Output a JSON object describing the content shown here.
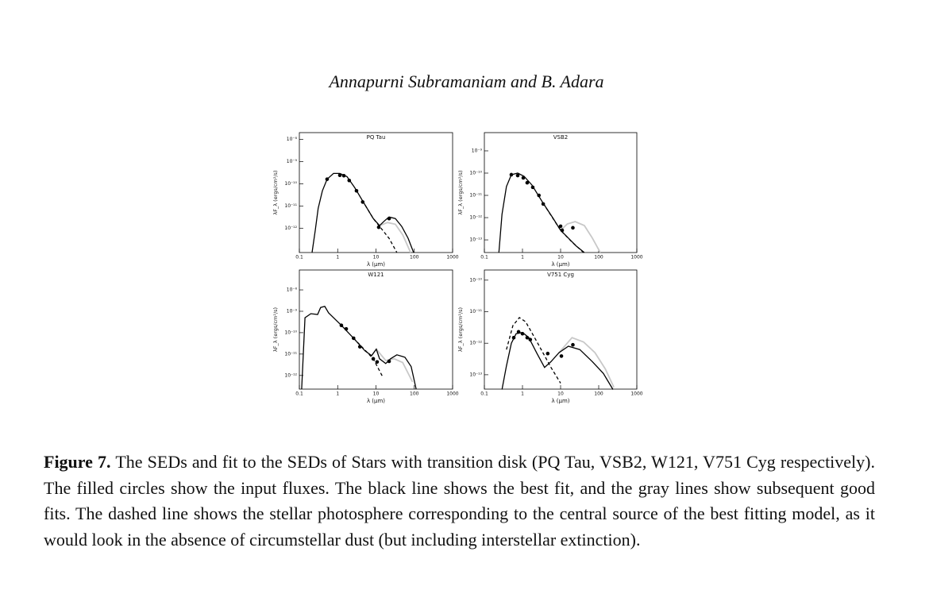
{
  "header": {
    "running_head": "Annapurni Subramaniam and B. Adara"
  },
  "chart_data": [
    {
      "type": "line",
      "title": "PQ Tau",
      "xlabel": "λ (μm)",
      "ylabel": "λF_λ (ergs/cm²/s)",
      "xscale": "log",
      "yscale": "log",
      "xlim": [
        0.1,
        1000
      ],
      "ylim": [
        8e-14,
        2e-08
      ],
      "xticks": [
        0.1,
        1,
        10,
        100,
        1000
      ],
      "yticks": [
        {
          "value": 1e-08,
          "label": "10⁻⁸"
        },
        {
          "value": 1e-09,
          "label": "10⁻⁹"
        },
        {
          "value": 1e-10,
          "label": "10⁻¹⁰"
        },
        {
          "value": 1e-11,
          "label": "10⁻¹¹"
        },
        {
          "value": 1e-12,
          "label": "10⁻¹²"
        }
      ],
      "series": [
        {
          "color": "#c8c8c8",
          "style": "solid",
          "x": [
            12.4,
            20,
            32,
            50,
            80
          ],
          "values": [
            1.3e-12,
            1.8e-12,
            1.5e-12,
            5e-13,
            8e-14
          ]
        },
        {
          "color": "#000000",
          "style": "dashed",
          "x": [
            5.2,
            8.5,
            22,
            35
          ],
          "values": [
            1.1e-11,
            2.7e-12,
            3.5e-13,
            8e-14
          ]
        },
        {
          "color": "#000000",
          "style": "solid",
          "x": [
            0.215,
            0.26,
            0.31,
            0.4,
            0.53,
            0.78,
            1.14,
            1.75,
            2.8,
            5.2,
            8.5,
            12.4,
            16.5,
            22,
            32,
            47,
            69,
            96
          ],
          "values": [
            8e-14,
            7.8e-13,
            7.8e-12,
            4.8e-11,
            1.6e-10,
            2.9e-10,
            2.9e-10,
            2.1e-10,
            6.6e-11,
            1.1e-11,
            2.7e-12,
            1.3e-12,
            2.1e-12,
            3.2e-12,
            2.7e-12,
            1.2e-12,
            3.5e-13,
            8e-14
          ]
        }
      ],
      "points": {
        "color": "#000000",
        "x": [
          0.53,
          1.14,
          1.45,
          2.0,
          3.1,
          4.5,
          11.8,
          22
        ],
        "values": [
          1.6e-10,
          2.4e-10,
          2.3e-10,
          1.4e-10,
          4.8e-11,
          1.5e-11,
          1.1e-12,
          2.7e-12
        ]
      }
    },
    {
      "type": "line",
      "title": "VSB2",
      "xlabel": "λ (μm)",
      "ylabel": "λF_λ (ergs/cm²/s)",
      "xscale": "log",
      "yscale": "log",
      "xlim": [
        0.1,
        1000
      ],
      "ylim": [
        2.7e-14,
        6.6e-09
      ],
      "xticks": [
        0.1,
        1,
        10,
        100,
        1000
      ],
      "yticks": [
        {
          "value": 1e-09,
          "label": "10⁻⁹"
        },
        {
          "value": 1e-10,
          "label": "10⁻¹⁰"
        },
        {
          "value": 1e-11,
          "label": "10⁻¹¹"
        },
        {
          "value": 1e-12,
          "label": "10⁻¹²"
        },
        {
          "value": 1e-13,
          "label": "10⁻¹³"
        }
      ],
      "series": [
        {
          "color": "#c8c8c8",
          "style": "solid",
          "x": [
            10,
            15,
            24,
            42,
            68,
            110
          ],
          "values": [
            2.7e-13,
            5.2e-13,
            6.6e-13,
            4.4e-13,
            1.2e-13,
            2.7e-14
          ]
        },
        {
          "color": "#000000",
          "style": "dashed",
          "x": [
            3.5,
            10,
            20,
            40
          ],
          "values": [
            4.4e-12,
            2.7e-13,
            8e-14,
            2.7e-14
          ]
        },
        {
          "color": "#000000",
          "style": "solid",
          "x": [
            0.24,
            0.29,
            0.38,
            0.51,
            0.75,
            1.1,
            1.78,
            3.5,
            6.2,
            10,
            16,
            26,
            42
          ],
          "values": [
            2.7e-14,
            1.4e-12,
            2.5e-11,
            8.5e-11,
            1e-10,
            7.2e-11,
            2.9e-11,
            4.4e-12,
            1e-12,
            2.7e-13,
            1.2e-13,
            5.2e-14,
            2.7e-14
          ]
        }
      ],
      "points": {
        "color": "#000000",
        "x": [
          0.51,
          0.75,
          1.05,
          1.33,
          1.86,
          2.7,
          3.5,
          10,
          11,
          21
        ],
        "values": [
          8.5e-11,
          7.8e-11,
          6.1e-11,
          3.7e-11,
          2.3e-11,
          1e-11,
          4.1e-12,
          4.1e-13,
          2.7e-13,
          3.5e-13
        ]
      }
    },
    {
      "type": "line",
      "title": "W121",
      "xlabel": "λ (μm)",
      "ylabel": "λF_λ (ergs/cm²/s)",
      "xscale": "log",
      "yscale": "log",
      "xlim": [
        0.1,
        1000
      ],
      "ylim": [
        2.3e-13,
        8.5e-08
      ],
      "xticks": [
        0.1,
        1,
        10,
        100,
        1000
      ],
      "yticks": [
        {
          "value": 1e-08,
          "label": "10⁻⁸"
        },
        {
          "value": 1e-09,
          "label": "10⁻⁹"
        },
        {
          "value": 1e-10,
          "label": "10⁻¹⁰"
        },
        {
          "value": 1e-11,
          "label": "10⁻¹¹"
        },
        {
          "value": 1e-12,
          "label": "10⁻¹²"
        }
      ],
      "series": [
        {
          "color": "#c8c8c8",
          "style": "solid",
          "x": [
            10.2,
            18,
            30,
            50,
            90
          ],
          "values": [
            1.7e-11,
            5e-12,
            6e-12,
            4e-12,
            5e-13
          ]
        },
        {
          "color": "#000000",
          "style": "dashed",
          "x": [
            2.6,
            8.5,
            15
          ],
          "values": [
            5.5e-11,
            6e-12,
            8.5e-13
          ]
        },
        {
          "color": "#000000",
          "style": "solid",
          "x": [
            0.115,
            0.14,
            0.2,
            0.3,
            0.36,
            0.46,
            0.58,
            1.25,
            2.6,
            5.2,
            7.7,
            10.2,
            12.4,
            18,
            24,
            35,
            57,
            83,
            112
          ],
          "values": [
            2.3e-13,
            5e-10,
            7.7e-10,
            7.1e-10,
            1.5e-09,
            1.7e-09,
            8.4e-10,
            2.2e-10,
            5.5e-11,
            1.4e-11,
            8.5e-12,
            1.7e-11,
            6e-12,
            3.6e-12,
            6e-12,
            9.2e-12,
            7.1e-12,
            2.6e-12,
            2.3e-13
          ]
        }
      ],
      "points": {
        "color": "#000000",
        "x": [
          1.25,
          1.67,
          2.6,
          3.8,
          8.5,
          10.7,
          22
        ],
        "values": [
          2.2e-10,
          1.5e-10,
          5.5e-11,
          2.2e-11,
          6e-12,
          4.3e-12,
          4.6e-12
        ]
      }
    },
    {
      "type": "line",
      "title": "V751 Cyg",
      "xlabel": "λ (μm)",
      "ylabel": "λF_λ (ergs/cm²/s)",
      "xscale": "log",
      "yscale": "log",
      "xlim": [
        0.1,
        1000
      ],
      "ylim": [
        3.5e-14,
        2.1e-10
      ],
      "xticks": [
        0.1,
        1,
        10,
        100,
        1000
      ],
      "yticks": [
        {
          "value": 1e-10,
          "label": "10⁻¹⁰"
        },
        {
          "value": 1e-11,
          "label": "10⁻¹¹"
        },
        {
          "value": 1e-12,
          "label": "10⁻¹²"
        },
        {
          "value": 1e-13,
          "label": "10⁻¹³"
        }
      ],
      "series": [
        {
          "color": "#c8c8c8",
          "style": "solid",
          "x": [
            9.1,
            20,
            40,
            80,
            150,
            250
          ],
          "values": [
            5e-13,
            1.5e-12,
            1.1e-12,
            5e-13,
            1.5e-13,
            4e-14
          ]
        },
        {
          "color": "#000000",
          "style": "dashed",
          "x": [
            0.38,
            0.56,
            0.83,
            1.21,
            2.4,
            5.6,
            10
          ],
          "values": [
            6.3e-13,
            3.6e-12,
            6.5e-12,
            4.8e-12,
            1.1e-12,
            1.7e-13,
            5.4e-14
          ]
        },
        {
          "color": "#000000",
          "style": "solid",
          "x": [
            0.29,
            0.38,
            0.51,
            0.68,
            1,
            1.47,
            2.4,
            3.8,
            5.6,
            9.1,
            16,
            32,
            68,
            133,
            237
          ],
          "values": [
            3.4e-14,
            1.9e-13,
            1e-12,
            2e-12,
            2.2e-12,
            1.5e-12,
            4.7e-13,
            1.7e-13,
            2.6e-13,
            5e-13,
            8e-13,
            6.3e-13,
            2.6e-13,
            1.1e-13,
            3.4e-14
          ]
        }
      ],
      "points": {
        "color": "#000000",
        "x": [
          0.59,
          0.79,
          1,
          1.33,
          1.6,
          4.6,
          10.5,
          21
        ],
        "values": [
          1.5e-12,
          2.3e-12,
          2e-12,
          1.5e-12,
          1.3e-12,
          4.7e-13,
          3.9e-13,
          8.9e-13
        ]
      }
    }
  ],
  "caption": {
    "label": "Figure 7.",
    "text": "The SEDs and fit to the SEDs of Stars with transition disk (PQ Tau, VSB2, W121, V751 Cyg respectively). The filled circles show the input fluxes. The black line shows the best fit, and the gray lines show subsequent good fits. The dashed line shows the stellar photosphere corresponding to the central source of the best fitting model, as it would look in the absence of circumstellar dust (but including interstellar extinction)."
  }
}
